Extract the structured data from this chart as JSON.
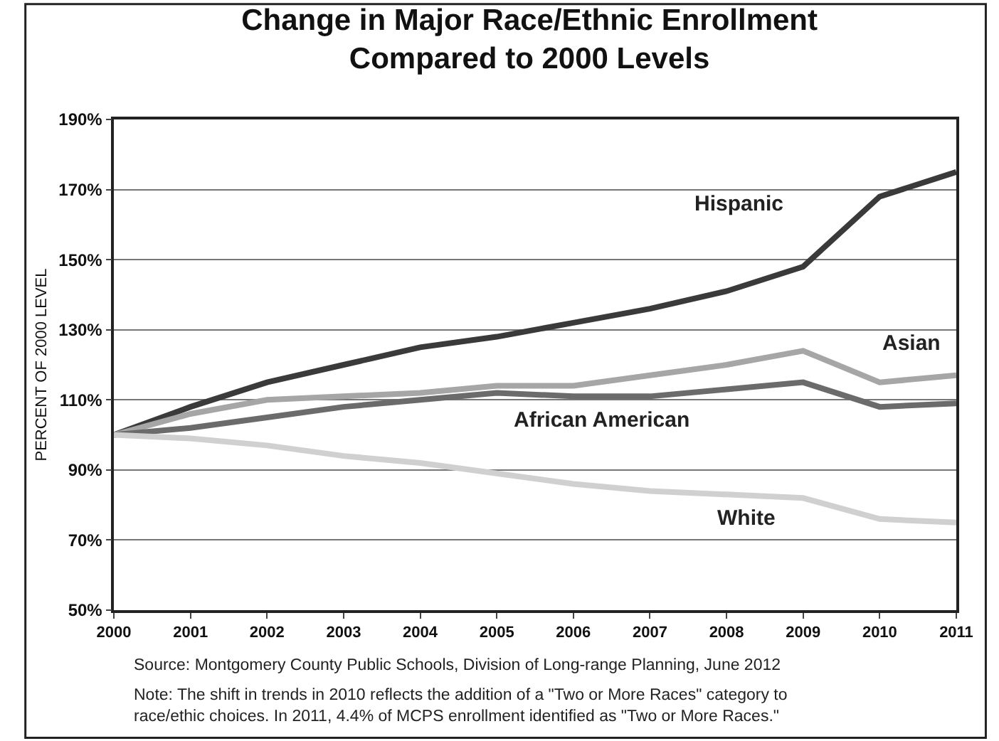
{
  "chart_data": {
    "type": "line",
    "title": "Change in Major Race/Ethnic Enrollment\nCompared to 2000 Levels",
    "ylabel": "PERCENT OF 2000 LEVEL",
    "x": [
      2000,
      2001,
      2002,
      2003,
      2004,
      2005,
      2006,
      2007,
      2008,
      2009,
      2010,
      2011
    ],
    "series": [
      {
        "name": "Hispanic",
        "color": "#3a3a3a",
        "values": [
          100,
          108,
          115,
          120,
          125,
          128,
          132,
          136,
          141,
          148,
          168,
          175
        ]
      },
      {
        "name": "Asian",
        "color": "#a6a6a6",
        "values": [
          100,
          106,
          110,
          111,
          112,
          114,
          114,
          117,
          120,
          124,
          115,
          117
        ]
      },
      {
        "name": "African American",
        "color": "#6b6b6b",
        "values": [
          100,
          102,
          105,
          108,
          110,
          112,
          111,
          111,
          113,
          115,
          108,
          109
        ]
      },
      {
        "name": "White",
        "color": "#d0d0d0",
        "values": [
          100,
          99,
          97,
          94,
          92,
          89,
          86,
          84,
          83,
          82,
          76,
          75
        ]
      }
    ],
    "xlim": [
      2000,
      2011
    ],
    "xticks": [
      2000,
      2001,
      2002,
      2003,
      2004,
      2005,
      2006,
      2007,
      2008,
      2009,
      2010,
      2011
    ],
    "ylim": [
      50,
      190
    ],
    "yticks": [
      {
        "value": 50,
        "label": "50%"
      },
      {
        "value": 70,
        "label": "70%"
      },
      {
        "value": 90,
        "label": "90%"
      },
      {
        "value": 110,
        "label": "110%"
      },
      {
        "value": 130,
        "label": "130%"
      },
      {
        "value": 150,
        "label": "150%"
      },
      {
        "value": 170,
        "label": "170%"
      },
      {
        "value": 190,
        "label": "190%"
      }
    ],
    "grid": "y",
    "legend": false,
    "marker": "none",
    "line_style": "solid",
    "annotations": [
      "Source: Montgomery County Public Schools, Division of Long-range Planning, June 2012",
      "Note: The shift in trends in 2010 reflects the addition of a \"Two or More Races\" category to\nrace/ethic choices. In 2011, 4.4% of MCPS enrollment identified as \"Two or More Races.\""
    ]
  }
}
